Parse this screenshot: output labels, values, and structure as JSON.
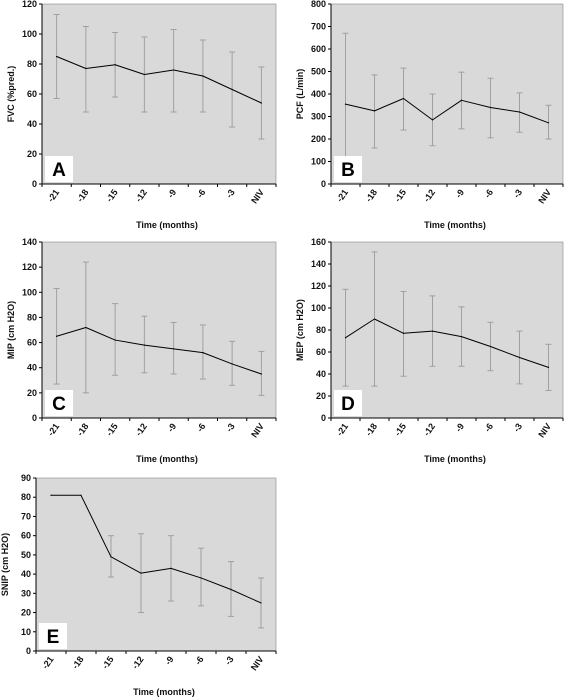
{
  "chart_data": [
    {
      "type": "line",
      "panel_label": "A",
      "categories": [
        "-21",
        "-18",
        "-15",
        "-12",
        "-9",
        "-6",
        "-3",
        "NIV"
      ],
      "values": [
        85,
        77,
        79.5,
        73,
        76,
        72,
        63,
        54
      ],
      "error_high": [
        113,
        105,
        101,
        98,
        103,
        96,
        88,
        78
      ],
      "error_low": [
        57,
        48,
        58,
        48,
        48,
        48,
        38,
        30
      ],
      "xlabel": "Time (months)",
      "ylabel": "FVC (%pred.)",
      "ylim": [
        0,
        120
      ],
      "yticks": [
        0,
        20,
        40,
        60,
        80,
        100,
        120
      ],
      "grid": false
    },
    {
      "type": "line",
      "panel_label": "B",
      "categories": [
        "-21",
        "-18",
        "-15",
        "-12",
        "-9",
        "-6",
        "-3",
        "NIV"
      ],
      "values": [
        355,
        325,
        380,
        285,
        372,
        340,
        320,
        272
      ],
      "error_high": [
        670,
        485,
        515,
        400,
        497,
        470,
        405,
        350
      ],
      "error_low": [
        35,
        160,
        240,
        170,
        245,
        205,
        230,
        200
      ],
      "xlabel": "Time (months)",
      "ylabel": "PCF  (L/min)",
      "ylim": [
        0,
        800
      ],
      "yticks": [
        0,
        100,
        200,
        300,
        400,
        500,
        600,
        700,
        800
      ],
      "grid": false
    },
    {
      "type": "line",
      "panel_label": "C",
      "categories": [
        "-21",
        "-18",
        "-15",
        "-12",
        "-9",
        "-6",
        "-3",
        "NIV"
      ],
      "values": [
        65,
        72,
        62,
        58,
        55,
        52,
        43,
        35
      ],
      "error_high": [
        103,
        124,
        91,
        81,
        76,
        74,
        61,
        53
      ],
      "error_low": [
        27,
        20,
        34,
        36,
        35,
        31,
        26,
        18
      ],
      "xlabel": "Time (months)",
      "ylabel": "MIP (cm H2O)",
      "ylim": [
        0,
        140
      ],
      "yticks": [
        0,
        20,
        40,
        60,
        80,
        100,
        120,
        140
      ],
      "grid": false
    },
    {
      "type": "line",
      "panel_label": "D",
      "categories": [
        "-21",
        "-18",
        "-15",
        "-12",
        "-9",
        "-6",
        "-3",
        "NIV"
      ],
      "values": [
        73,
        90,
        77,
        79,
        74,
        65,
        55,
        46
      ],
      "error_high": [
        117,
        151,
        115,
        111,
        101,
        87,
        79,
        67
      ],
      "error_low": [
        29,
        29,
        38,
        47,
        47,
        43,
        31,
        25
      ],
      "xlabel": "Time (months)",
      "ylabel": "MEP (cm H2O)",
      "ylim": [
        0,
        160
      ],
      "yticks": [
        0,
        20,
        40,
        60,
        80,
        100,
        120,
        140,
        160
      ],
      "grid": false
    },
    {
      "type": "line",
      "panel_label": "E",
      "categories": [
        "-21",
        "-18",
        "-15",
        "-12",
        "-9",
        "-6",
        "-3",
        "NIV"
      ],
      "values": [
        81,
        81,
        49,
        40.5,
        43,
        38,
        32,
        25
      ],
      "error_high": [
        null,
        null,
        60,
        61,
        60,
        53.5,
        46.5,
        38
      ],
      "error_low": [
        null,
        null,
        38.5,
        20,
        26,
        23.5,
        18,
        12
      ],
      "xlabel": "Time (months)",
      "ylabel": "SNIP (cm H2O)",
      "ylim": [
        0,
        90
      ],
      "yticks": [
        0,
        10,
        20,
        30,
        40,
        50,
        60,
        70,
        80,
        90
      ],
      "grid": false
    }
  ],
  "colors": {
    "plot_background": "#d9d9d9",
    "series_line": "#000000",
    "error_bar": "#a0a0a0",
    "panel_label_box": "#ffffff"
  }
}
